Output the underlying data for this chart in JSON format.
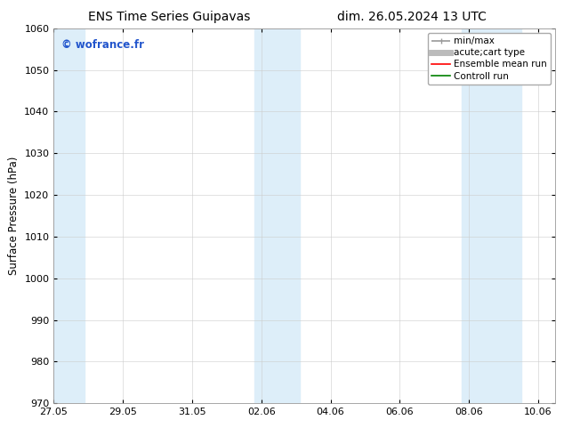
{
  "title_left": "ENS Time Series Guipavas",
  "title_right": "dim. 26.05.2024 13 UTC",
  "ylabel": "Surface Pressure (hPa)",
  "ylim": [
    970,
    1060
  ],
  "yticks": [
    970,
    980,
    990,
    1000,
    1010,
    1020,
    1030,
    1040,
    1050,
    1060
  ],
  "xtick_labels": [
    "27.05",
    "29.05",
    "31.05",
    "02.06",
    "04.06",
    "06.06",
    "08.06",
    "10.06"
  ],
  "xtick_positions": [
    0,
    2,
    4,
    6,
    8,
    10,
    12,
    14
  ],
  "xlim": [
    0,
    14.5
  ],
  "shaded_regions": [
    {
      "start": 0.0,
      "end": 0.9,
      "color": "#ddeef9"
    },
    {
      "start": 5.8,
      "end": 7.1,
      "color": "#ddeef9"
    },
    {
      "start": 11.8,
      "end": 13.5,
      "color": "#ddeef9"
    }
  ],
  "watermark": "© wofrance.fr",
  "watermark_color": "#2255cc",
  "background_color": "#ffffff",
  "plot_bg_color": "#ffffff",
  "grid_color": "#cccccc",
  "spine_color": "#999999",
  "title_fontsize": 10,
  "axis_label_fontsize": 8.5,
  "tick_fontsize": 8,
  "legend_fontsize": 7.5,
  "legend_entries": [
    {
      "label": "min/max",
      "color": "#999999",
      "lw": 1.2
    },
    {
      "label": "acute;cart type",
      "color": "#bbbbbb",
      "lw": 5
    },
    {
      "label": "Ensemble mean run",
      "color": "#ff0000",
      "lw": 1.2
    },
    {
      "label": "Controll run",
      "color": "#008000",
      "lw": 1.2
    }
  ]
}
